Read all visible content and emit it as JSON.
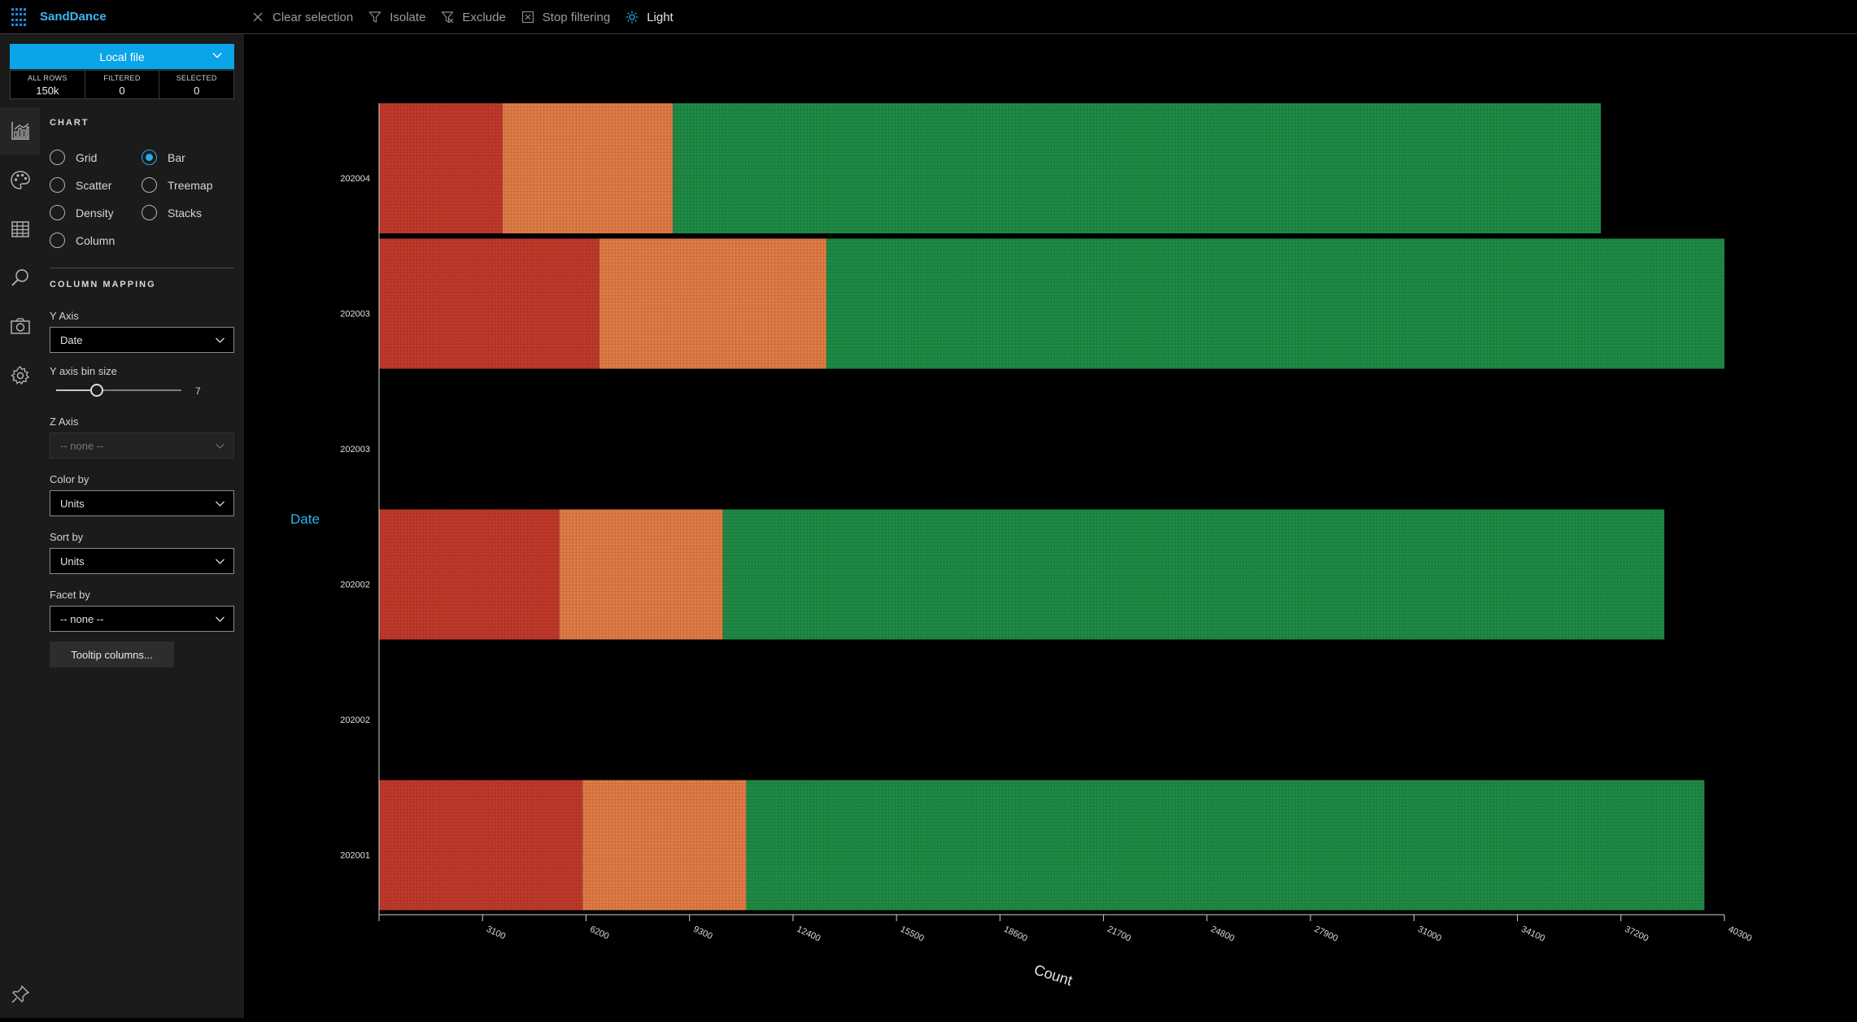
{
  "app": {
    "title": "SandDance",
    "brand_color": "#3db6f2"
  },
  "toolbar": {
    "items": [
      {
        "label": "Clear selection",
        "icon": "close-icon"
      },
      {
        "label": "Isolate",
        "icon": "filter-icon"
      },
      {
        "label": "Exclude",
        "icon": "filter-exclude-icon"
      },
      {
        "label": "Stop filtering",
        "icon": "stop-filter-icon"
      },
      {
        "label": "Light",
        "icon": "sun-icon"
      }
    ]
  },
  "rail": {
    "items": [
      "chart-icon",
      "palette-icon",
      "table-icon",
      "search-icon",
      "camera-icon",
      "gear-icon",
      "pin-icon"
    ]
  },
  "datasource": {
    "label": "Local file",
    "color": "#0aa5e8"
  },
  "counts": [
    {
      "label": "ALL ROWS",
      "value": "150k"
    },
    {
      "label": "FILTERED",
      "value": "0"
    },
    {
      "label": "SELECTED",
      "value": "0"
    }
  ],
  "chart_section": {
    "title": "CHART",
    "types": [
      {
        "label": "Grid",
        "selected": false
      },
      {
        "label": "Bar",
        "selected": true
      },
      {
        "label": "Scatter",
        "selected": false
      },
      {
        "label": "Treemap",
        "selected": false
      },
      {
        "label": "Density",
        "selected": false
      },
      {
        "label": "Stacks",
        "selected": false
      },
      {
        "label": "Column",
        "selected": false
      }
    ]
  },
  "mapping": {
    "title": "COLUMN MAPPING",
    "y_axis": {
      "label": "Y Axis",
      "value": "Date"
    },
    "bin": {
      "label": "Y axis bin size",
      "value": "7",
      "level": 7
    },
    "z_axis": {
      "label": "Z Axis",
      "value": "-- none --"
    },
    "color_by": {
      "label": "Color by",
      "value": "Units"
    },
    "sort_by": {
      "label": "Sort by",
      "value": "Units"
    },
    "facet_by": {
      "label": "Facet by",
      "value": "-- none --"
    },
    "tooltip_button": "Tooltip columns..."
  },
  "chart_data": {
    "type": "bar",
    "orientation": "horizontal",
    "stacked": true,
    "ylabel": "Date",
    "xlabel": "Count",
    "x_ticks": [
      "3100",
      "6200",
      "9300",
      "12400",
      "15500",
      "18600",
      "21700",
      "24800",
      "27900",
      "31000",
      "34100",
      "37200",
      "40300"
    ],
    "xlim": [
      0,
      40300
    ],
    "categories": [
      "202004",
      "202003",
      "202003",
      "202002",
      "202002",
      "202001"
    ],
    "colors": [
      "#c0392b",
      "#e07b45",
      "#1f8a45"
    ],
    "series": [
      {
        "values": [
          3700,
          6600,
          0,
          5400,
          0,
          6100
        ]
      },
      {
        "values": [
          5100,
          6800,
          0,
          4900,
          0,
          4900
        ]
      },
      {
        "values": [
          27800,
          26900,
          0,
          28200,
          0,
          28700
        ]
      }
    ]
  }
}
